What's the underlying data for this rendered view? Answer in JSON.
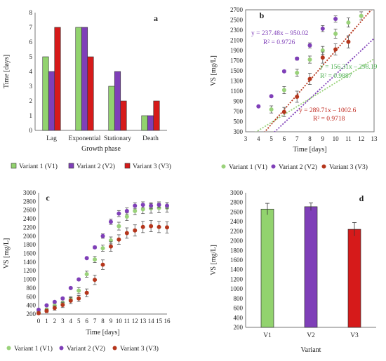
{
  "figure": {
    "colors": {
      "v1": "#92d36e",
      "v2": "#7f3fb8",
      "v3": "#d61a1a",
      "v1_dot": "#9ad27a",
      "v3_dot": "#b5361c"
    }
  },
  "chart_data": [
    {
      "panel": "a",
      "type": "bar",
      "xlabel": "Growth phase",
      "ylabel": "Time [days]",
      "ylim": [
        0,
        8
      ],
      "yticks": [
        0,
        1,
        2,
        3,
        4,
        5,
        6,
        7,
        8
      ],
      "categories": [
        "Lag",
        "Exponential",
        "Stationary",
        "Death"
      ],
      "series": [
        {
          "name": "Variant 1 (V1)",
          "values": [
            5,
            7,
            3,
            1
          ]
        },
        {
          "name": "Variant 2 (V2)",
          "values": [
            4,
            7,
            4,
            1
          ]
        },
        {
          "name": "Variant 3 (V3)",
          "values": [
            7,
            5,
            2,
            2
          ]
        }
      ],
      "legend": "bottom"
    },
    {
      "panel": "b",
      "type": "scatter",
      "xlabel": "Time [days]",
      "ylabel": "VS [mg/L]",
      "xlim": [
        3,
        13
      ],
      "ylim": [
        300,
        2700
      ],
      "xticks": [
        3,
        4,
        5,
        6,
        7,
        8,
        9,
        10,
        11,
        12,
        13
      ],
      "yticks": [
        300,
        500,
        700,
        900,
        1100,
        1300,
        1500,
        1700,
        1900,
        2100,
        2300,
        2500,
        2700
      ],
      "series": [
        {
          "name": "Variant 1 (V1)",
          "x": [
            5,
            6,
            7,
            8,
            9,
            10,
            11,
            12
          ],
          "y": [
            740,
            1120,
            1460,
            1720,
            1900,
            2230,
            2450,
            2580
          ],
          "err": [
            70,
            70,
            70,
            70,
            80,
            90,
            90,
            80
          ],
          "trendline": {
            "slope": 156.31,
            "intercept": -298.19,
            "equation": "y = 156.31x – 298.19",
            "r2": "R² = 0.9887"
          }
        },
        {
          "name": "Variant 2 (V2)",
          "x": [
            4,
            5,
            6,
            7,
            8,
            9,
            10
          ],
          "y": [
            800,
            1000,
            1490,
            1740,
            2000,
            2330,
            2520
          ],
          "err": [
            0,
            20,
            20,
            30,
            50,
            60,
            60
          ],
          "trendline": {
            "slope": 237.48,
            "intercept": -950.02,
            "equation": "y = 237.48x – 950.02",
            "r2": "R² = 0.9726"
          }
        },
        {
          "name": "Variant 3 (V3)",
          "x": [
            6,
            7,
            8,
            9,
            10,
            11
          ],
          "y": [
            690,
            990,
            1340,
            1760,
            1920,
            2070
          ],
          "err": [
            90,
            110,
            110,
            110,
            110,
            120
          ],
          "trendline": {
            "slope": 289.71,
            "intercept": -1002.6,
            "equation": "y = 289.71x – 1002.6",
            "r2": "R² = 0.9718"
          }
        }
      ],
      "legend": "bottom"
    },
    {
      "panel": "c",
      "type": "scatter",
      "xlabel": "Time [days]",
      "ylabel": "VS [mg/L]",
      "xlim": [
        0,
        16
      ],
      "ylim": [
        200,
        3000
      ],
      "xticks": [
        0,
        1,
        2,
        3,
        4,
        5,
        6,
        7,
        8,
        9,
        10,
        11,
        12,
        13,
        14,
        15,
        16
      ],
      "yticks": [
        200,
        400,
        600,
        800,
        1000,
        1200,
        1400,
        1600,
        1800,
        2000,
        2200,
        2400,
        2600,
        2800,
        3000
      ],
      "series": [
        {
          "name": "Variant 1 (V1)",
          "x": [
            0,
            1,
            2,
            3,
            4,
            5,
            6,
            7,
            8,
            9,
            10,
            11,
            12,
            13,
            14,
            15,
            16
          ],
          "y": [
            250,
            300,
            390,
            450,
            540,
            740,
            1120,
            1460,
            1720,
            1900,
            2230,
            2450,
            2580,
            2620,
            2640,
            2650,
            2660
          ],
          "err": [
            40,
            40,
            40,
            50,
            60,
            70,
            70,
            70,
            70,
            80,
            90,
            90,
            90,
            100,
            110,
            110,
            110
          ]
        },
        {
          "name": "Variant 2 (V2)",
          "x": [
            0,
            1,
            2,
            3,
            4,
            5,
            6,
            7,
            8,
            9,
            10,
            11,
            12,
            13,
            14,
            15,
            16
          ],
          "y": [
            300,
            400,
            480,
            560,
            800,
            1000,
            1490,
            1740,
            2000,
            2330,
            2520,
            2580,
            2700,
            2720,
            2700,
            2720,
            2700
          ],
          "err": [
            20,
            20,
            20,
            20,
            20,
            20,
            20,
            30,
            50,
            60,
            70,
            70,
            70,
            70,
            70,
            70,
            70
          ]
        },
        {
          "name": "Variant 3 (V3)",
          "x": [
            0,
            1,
            2,
            3,
            4,
            5,
            6,
            7,
            8,
            9,
            10,
            11,
            12,
            13,
            14,
            15,
            16
          ],
          "y": [
            220,
            270,
            340,
            410,
            510,
            560,
            690,
            990,
            1340,
            1760,
            1920,
            2070,
            2130,
            2210,
            2230,
            2210,
            2200
          ],
          "err": [
            30,
            40,
            50,
            60,
            70,
            70,
            90,
            110,
            110,
            110,
            110,
            120,
            130,
            130,
            130,
            130,
            130
          ]
        }
      ],
      "legend": "bottom"
    },
    {
      "panel": "d",
      "type": "bar",
      "xlabel": "Variant",
      "ylabel": "VS [mg/L]",
      "ylim": [
        200,
        3000
      ],
      "yticks": [
        200,
        400,
        600,
        800,
        1000,
        1200,
        1400,
        1600,
        1800,
        2000,
        2200,
        2400,
        2600,
        2800,
        3000
      ],
      "categories": [
        "V1",
        "V2",
        "V3"
      ],
      "values": [
        2660,
        2710,
        2240
      ],
      "err": [
        120,
        80,
        140
      ]
    }
  ]
}
